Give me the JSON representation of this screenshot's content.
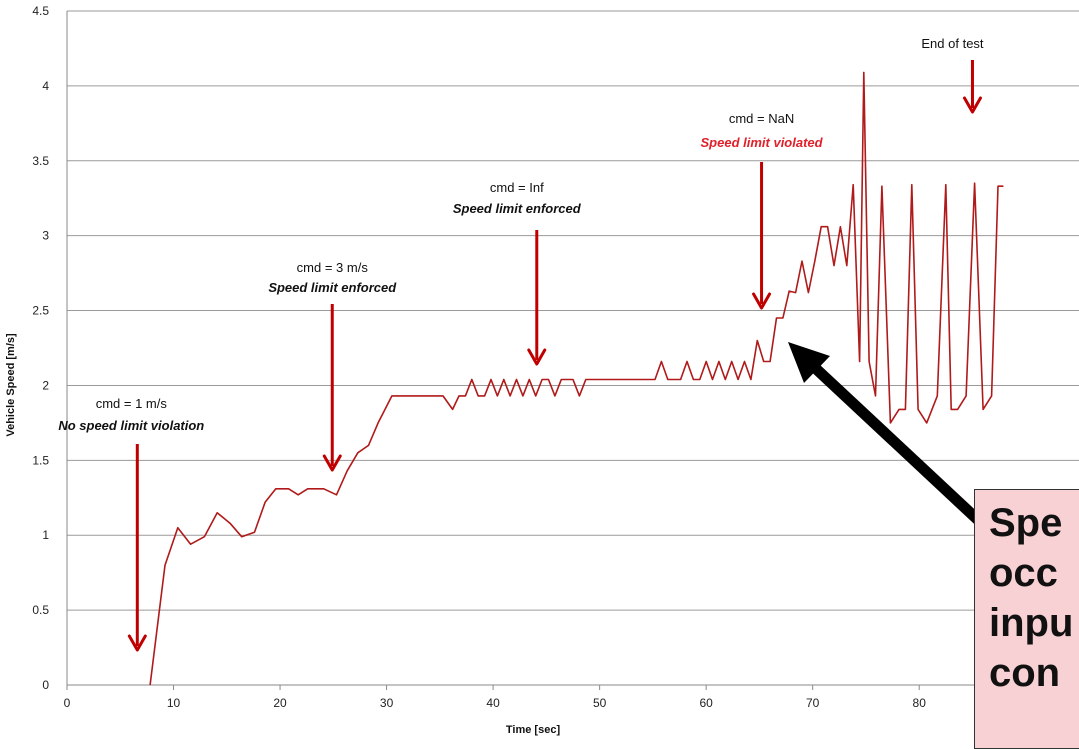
{
  "chart_data": {
    "type": "line",
    "xlabel": "Time [sec]",
    "ylabel": "Vehicle Speed [m/s]",
    "xlim": [
      0,
      95
    ],
    "ylim": [
      0,
      4.5
    ],
    "x_ticks": [
      "0",
      "10",
      "20",
      "30",
      "40",
      "50",
      "60",
      "70",
      "80"
    ],
    "y_ticks": [
      "0",
      "0.5",
      "1",
      "1.5",
      "2",
      "2.5",
      "3",
      "3.5",
      "4",
      "4.5"
    ],
    "grid": "horizontal",
    "line_color": "#b01a1a",
    "arrow_color": "#c00000",
    "series": [
      {
        "x": [
          7.8,
          9.2,
          10.4,
          11.6,
          12.9,
          14.1,
          15.3,
          16.4,
          17.6,
          18.6,
          19.6,
          20.8,
          21.7,
          22.6,
          24.1,
          25.3,
          26.3,
          27.3,
          28.3,
          29.2,
          30.5,
          31.8,
          33,
          34.3,
          35.3,
          36.2,
          36.8,
          37.4,
          38,
          38.6,
          39.2,
          39.8,
          40.4,
          41,
          41.6,
          42.2,
          42.8,
          43.4,
          44,
          44.6,
          45.2,
          45.8,
          46.4,
          47.5,
          48.1,
          48.7,
          50,
          52,
          54,
          55.2,
          55.8,
          56.4,
          57.6,
          58.2,
          58.8,
          59.4,
          60,
          60.6,
          61.2,
          61.8,
          62.4,
          63,
          63.6,
          64.2,
          64.8,
          65.4,
          66,
          66.6,
          67.2,
          67.8,
          68.4,
          69,
          69.6,
          70.2,
          70.8,
          71.4,
          72,
          72.6,
          73.2,
          73.8,
          74.4,
          74.8,
          75.3,
          75.9,
          76.5,
          77.3,
          78.1,
          78.7,
          79.3,
          79.9,
          80.7,
          81.7,
          82.5,
          83,
          83.6,
          84.4,
          85.2,
          86,
          86.8,
          87.4,
          87.9
        ],
        "y": [
          0,
          0.8,
          1.05,
          0.94,
          0.99,
          1.15,
          1.08,
          0.99,
          1.02,
          1.22,
          1.31,
          1.31,
          1.27,
          1.31,
          1.31,
          1.27,
          1.43,
          1.55,
          1.6,
          1.75,
          1.93,
          1.93,
          1.93,
          1.93,
          1.93,
          1.84,
          1.93,
          1.93,
          2.04,
          1.93,
          1.93,
          2.04,
          1.93,
          2.04,
          1.93,
          2.04,
          1.93,
          2.04,
          1.93,
          2.04,
          2.04,
          1.93,
          2.04,
          2.04,
          1.93,
          2.04,
          2.04,
          2.04,
          2.04,
          2.04,
          2.16,
          2.04,
          2.04,
          2.16,
          2.04,
          2.04,
          2.16,
          2.04,
          2.16,
          2.04,
          2.16,
          2.04,
          2.16,
          2.04,
          2.3,
          2.16,
          2.16,
          2.45,
          2.45,
          2.63,
          2.62,
          2.83,
          2.62,
          2.83,
          3.06,
          3.06,
          2.8,
          3.06,
          2.8,
          3.34,
          2.16,
          4.09,
          2.16,
          1.93,
          3.33,
          1.75,
          1.84,
          1.84,
          3.34,
          1.84,
          1.75,
          1.93,
          3.34,
          1.84,
          1.84,
          1.93,
          3.35,
          1.84,
          1.93,
          3.33,
          3.33
        ]
      }
    ],
    "annotations": [
      {
        "line1": "cmd = 1 m/s",
        "line2": "No speed limit violation",
        "line2_color": "#111111",
        "x": 6.6
      },
      {
        "line1": "cmd = 3 m/s",
        "line2": "Speed limit enforced",
        "line2_color": "#111111",
        "x": 24.9
      },
      {
        "line1": "cmd = Inf",
        "line2": "Speed limit enforced",
        "line2_color": "#111111",
        "x": 44.1
      },
      {
        "line1": "cmd = NaN",
        "line2": "Speed limit violated",
        "line2_color": "#e0202a",
        "x": 65.2
      },
      {
        "line1": "End of test",
        "line2": "",
        "line2_color": "#111111",
        "x": 85.0
      }
    ],
    "callout": {
      "text": "Spe\nocc\ninpu\ncon",
      "background": "#f7d1d3"
    }
  }
}
